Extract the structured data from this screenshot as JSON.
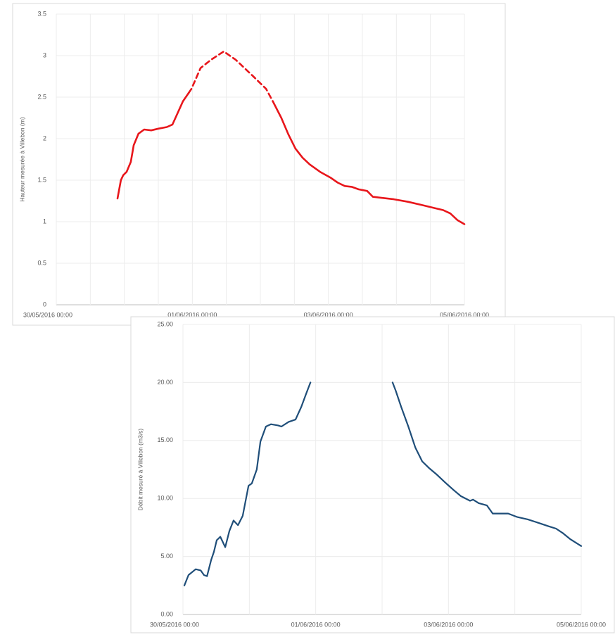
{
  "chart_data": [
    {
      "type": "line",
      "ylabel": "Hauteur mesurée à Villebon (m)",
      "x": [
        21.6,
        22.8,
        23.6,
        24.8,
        26.3,
        27.3,
        29.0,
        31.0,
        33.5,
        36.0,
        39.0,
        41.0,
        42.7,
        44.7,
        46.7,
        47.7,
        50.9,
        54.6,
        59.1,
        63.3,
        69.5,
        74.0,
        76.4,
        79.4,
        81.9,
        84.4,
        86.9,
        89.4,
        93.1,
        96.8,
        99.3,
        101.8,
        104.2,
        106.7,
        109.7,
        111.7,
        114.2,
        119.1,
        124.1,
        129.1,
        134.0,
        136.5,
        139.0,
        141.5,
        144
      ],
      "series": [
        {
          "color": "#e8161b",
          "dashed": false,
          "values": [
            1.28,
            1.5,
            1.56,
            1.6,
            1.72,
            1.92,
            2.06,
            2.11,
            2.1,
            2.12,
            2.14,
            2.17,
            2.3,
            2.45,
            2.55,
            null,
            null,
            null,
            null,
            null,
            null,
            null,
            2.45,
            2.25,
            2.05,
            1.88,
            1.77,
            1.69,
            1.6,
            1.53,
            1.47,
            1.43,
            1.42,
            1.39,
            1.37,
            1.3,
            1.29,
            1.27,
            1.24,
            1.2,
            1.16,
            1.14,
            1.1,
            1.02,
            0.97
          ]
        },
        {
          "color": "#e8161b",
          "dashed": true,
          "values": [
            null,
            null,
            null,
            null,
            null,
            null,
            null,
            null,
            null,
            null,
            null,
            null,
            null,
            null,
            2.55,
            2.6,
            2.85,
            2.95,
            3.05,
            2.95,
            2.75,
            2.6,
            2.45,
            null,
            null,
            null,
            null,
            null,
            null,
            null,
            null,
            null,
            null,
            null,
            null,
            null,
            null,
            null,
            null,
            null,
            null,
            null,
            null,
            null,
            null
          ]
        }
      ],
      "xlim": [
        0,
        144
      ],
      "xticks": [
        {
          "value": 0,
          "label": "30/05/2016 00:00"
        },
        {
          "value": 48,
          "label": "01/06/2016 00:00"
        },
        {
          "value": 96,
          "label": "03/06/2016 00:00"
        },
        {
          "value": 144,
          "label": "05/06/2016 00:00"
        }
      ],
      "xgrid": [
        12,
        24,
        36,
        60,
        72,
        84,
        108,
        120,
        132
      ],
      "ylim": [
        0,
        3.5
      ],
      "yticks": [
        0,
        0.5,
        1,
        1.5,
        2,
        2.5,
        3,
        3.5
      ],
      "grid": true
    },
    {
      "type": "line",
      "ylabel": "Débit mesuré à Villebon (m3/s)",
      "x": [
        0.5,
        2.0,
        4.6,
        6.4,
        7.6,
        8.7,
        10.2,
        11.2,
        12.2,
        13.5,
        15.3,
        16.8,
        18.3,
        19.9,
        21.6,
        23.7,
        24.9,
        26.7,
        28.0,
        30.0,
        31.8,
        34.4,
        35.6,
        38.2,
        40.7,
        42.8,
        44.5,
        46.1,
        72,
        75.8,
        76.9,
        78.9,
        81.5,
        84.0,
        86.5,
        89.1,
        91.6,
        94.7,
        98.0,
        100.5,
        103.8,
        104.9,
        106.9,
        109.9,
        112.0,
        114.5,
        117.6,
        120.9,
        124.7,
        128.5,
        132.3,
        134.9,
        137.4,
        140.0,
        144
      ],
      "series": [
        {
          "color": "#1f4e79",
          "dashed": false,
          "values": [
            2.5,
            3.4,
            3.9,
            3.8,
            3.4,
            3.3,
            4.7,
            5.4,
            6.4,
            6.7,
            5.8,
            7.2,
            8.1,
            7.7,
            8.5,
            11.1,
            11.3,
            12.5,
            14.9,
            16.2,
            16.4,
            16.3,
            16.2,
            16.6,
            16.8,
            17.9,
            19.0,
            20.0,
            null,
            20.0,
            19.3,
            17.9,
            16.2,
            14.4,
            13.2,
            12.6,
            12.1,
            11.4,
            10.7,
            10.2,
            9.8,
            9.9,
            9.6,
            9.4,
            8.7,
            8.7,
            8.7,
            8.4,
            8.2,
            7.9,
            7.6,
            7.4,
            7.0,
            6.5,
            5.9
          ]
        }
      ],
      "xlim": [
        0,
        144
      ],
      "xticks": [
        {
          "value": 0,
          "label": "30/05/2016 00:00"
        },
        {
          "value": 48,
          "label": "01/06/2016 00:00"
        },
        {
          "value": 96,
          "label": "03/06/2016 00:00"
        },
        {
          "value": 144,
          "label": "05/06/2016 00:00"
        }
      ],
      "xgrid": [
        24,
        72,
        120
      ],
      "ylim": [
        0,
        25
      ],
      "yticks": [
        {
          "value": 0,
          "label": "0.00"
        },
        {
          "value": 5,
          "label": "5.00"
        },
        {
          "value": 10,
          "label": "10.00"
        },
        {
          "value": 15,
          "label": "15.00"
        },
        {
          "value": 20,
          "label": "20.00"
        },
        {
          "value": 25,
          "label": "25.00"
        }
      ],
      "grid": true
    }
  ]
}
